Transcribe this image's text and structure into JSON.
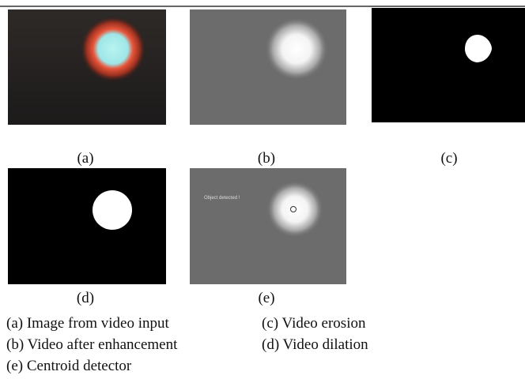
{
  "figure": {
    "panels": [
      {
        "label": "(a)"
      },
      {
        "label": "(b)"
      },
      {
        "label": "(c)"
      },
      {
        "label": "(d)"
      },
      {
        "label": "(e)",
        "overlay_text": "Object detected !"
      }
    ],
    "caption": {
      "left": [
        "(a) Image from video input",
        "(b) Video after enhancement",
        "(e) Centroid detector"
      ],
      "right": [
        "(c) Video erosion",
        "(d) Video dilation"
      ]
    }
  }
}
